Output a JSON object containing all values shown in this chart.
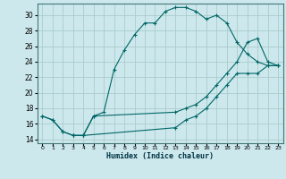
{
  "title": "",
  "xlabel": "Humidex (Indice chaleur)",
  "bg_color": "#cce8ec",
  "grid_color": "#aacccc",
  "line_color": "#006666",
  "xlim": [
    -0.5,
    23.5
  ],
  "ylim": [
    13.5,
    31.5
  ],
  "xticks": [
    0,
    1,
    2,
    3,
    4,
    5,
    6,
    7,
    8,
    9,
    10,
    11,
    12,
    13,
    14,
    15,
    16,
    17,
    18,
    19,
    20,
    21,
    22,
    23
  ],
  "yticks": [
    14,
    16,
    18,
    20,
    22,
    24,
    26,
    28,
    30
  ],
  "curve1_x": [
    0,
    1,
    2,
    3,
    4,
    5,
    6,
    7,
    8,
    9,
    10,
    11,
    12,
    13,
    14,
    15,
    16,
    17,
    18,
    19,
    20,
    21,
    22,
    23
  ],
  "curve1_y": [
    17.0,
    16.5,
    15.0,
    14.5,
    14.5,
    17.0,
    17.5,
    23.0,
    25.5,
    27.5,
    29.0,
    29.0,
    30.5,
    31.0,
    31.0,
    30.5,
    29.5,
    30.0,
    29.0,
    26.5,
    25.0,
    24.0,
    23.5,
    23.5
  ],
  "curve2_x": [
    0,
    1,
    2,
    3,
    4,
    5,
    13,
    14,
    15,
    16,
    17,
    18,
    19,
    20,
    21,
    22,
    23
  ],
  "curve2_y": [
    17.0,
    16.5,
    15.0,
    14.5,
    14.5,
    17.0,
    17.5,
    18.0,
    18.5,
    19.5,
    21.0,
    22.5,
    24.0,
    26.5,
    27.0,
    24.0,
    23.5
  ],
  "curve3_x": [
    3,
    4,
    13,
    14,
    15,
    16,
    17,
    18,
    19,
    20,
    21,
    22,
    23
  ],
  "curve3_y": [
    14.5,
    14.5,
    15.5,
    16.5,
    17.0,
    18.0,
    19.5,
    21.0,
    22.5,
    22.5,
    22.5,
    23.5,
    23.5
  ]
}
